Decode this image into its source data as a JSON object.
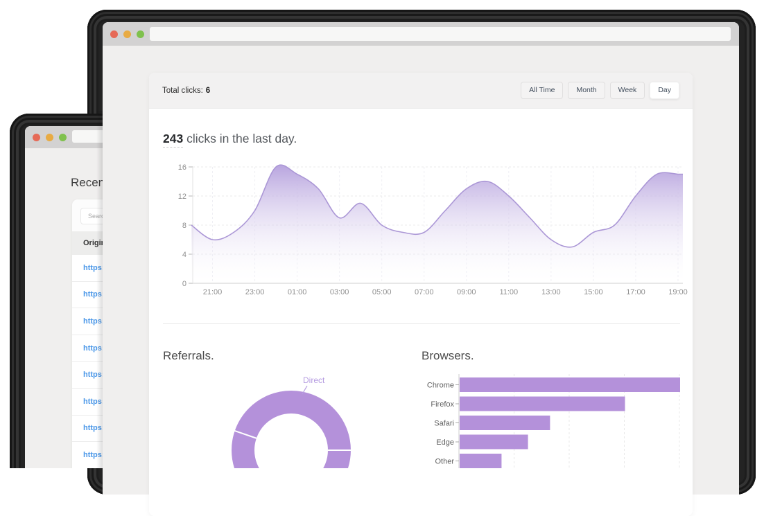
{
  "back_window": {
    "heading": "Recent",
    "search": {
      "placeholder": "Search"
    },
    "table": {
      "header": "Original",
      "rows": [
        "https://",
        "https://",
        "https://",
        "https://",
        "https://",
        "https://",
        "https://",
        "https://"
      ]
    }
  },
  "front_window": {
    "stats": {
      "label": "Total clicks:",
      "value": "6"
    },
    "filters": [
      {
        "label": "All Time",
        "active": false
      },
      {
        "label": "Month",
        "active": false
      },
      {
        "label": "Week",
        "active": false
      },
      {
        "label": "Day",
        "active": true
      }
    ],
    "headline": {
      "count": "243",
      "suffix": " clicks in the last day."
    },
    "sections": {
      "referrals": "Referrals.",
      "browsers": "Browsers."
    }
  },
  "colors": {
    "accent_purple": "#b491da",
    "area_line": "#ab97d6",
    "area_fill_top": "#b7a3de",
    "donut_label": "#b59ce1",
    "link_blue": "#4a97e8",
    "traffic_red": "#e66a57",
    "traffic_yellow": "#e8ab43",
    "traffic_green": "#7fc14d",
    "axis_text": "#8f8f8f"
  },
  "chart_data": [
    {
      "type": "area",
      "title": "243 clicks in the last day.",
      "x": [
        "20:00",
        "21:00",
        "22:00",
        "23:00",
        "00:00",
        "01:00",
        "02:00",
        "03:00",
        "04:00",
        "05:00",
        "06:00",
        "07:00",
        "08:00",
        "09:00",
        "10:00",
        "11:00",
        "12:00",
        "13:00",
        "14:00",
        "15:00",
        "16:00",
        "17:00",
        "18:00",
        "19:00"
      ],
      "values": [
        8,
        6,
        7,
        10,
        16,
        15,
        13,
        9,
        11,
        8,
        7,
        7,
        10,
        13,
        14,
        12,
        9,
        6,
        5,
        7,
        8,
        12,
        15,
        15
      ],
      "x_tick_labels": [
        "21:00",
        "23:00",
        "01:00",
        "03:00",
        "05:00",
        "07:00",
        "09:00",
        "11:00",
        "13:00",
        "15:00",
        "17:00",
        "19:00"
      ],
      "y_ticks": [
        0,
        4,
        8,
        12,
        16
      ],
      "ylim": [
        0,
        16
      ],
      "grid": true,
      "legend": false
    },
    {
      "type": "pie",
      "subtype": "donut",
      "title": "Referrals.",
      "segments": [
        {
          "label": "Direct",
          "start_deg": 0,
          "end_deg": 161
        },
        {
          "label": "",
          "start_deg": 161,
          "end_deg": 360
        }
      ],
      "visible_labels": [
        "Direct"
      ],
      "legend": false
    },
    {
      "type": "bar",
      "orientation": "horizontal",
      "title": "Browsers.",
      "categories": [
        "Chrome",
        "Firefox",
        "Safari",
        "Edge",
        "Other"
      ],
      "values": [
        100,
        75,
        41,
        31,
        19
      ],
      "xlim": [
        0,
        101
      ],
      "grid_ticks": [
        25,
        50,
        75,
        100
      ],
      "legend": false
    }
  ]
}
